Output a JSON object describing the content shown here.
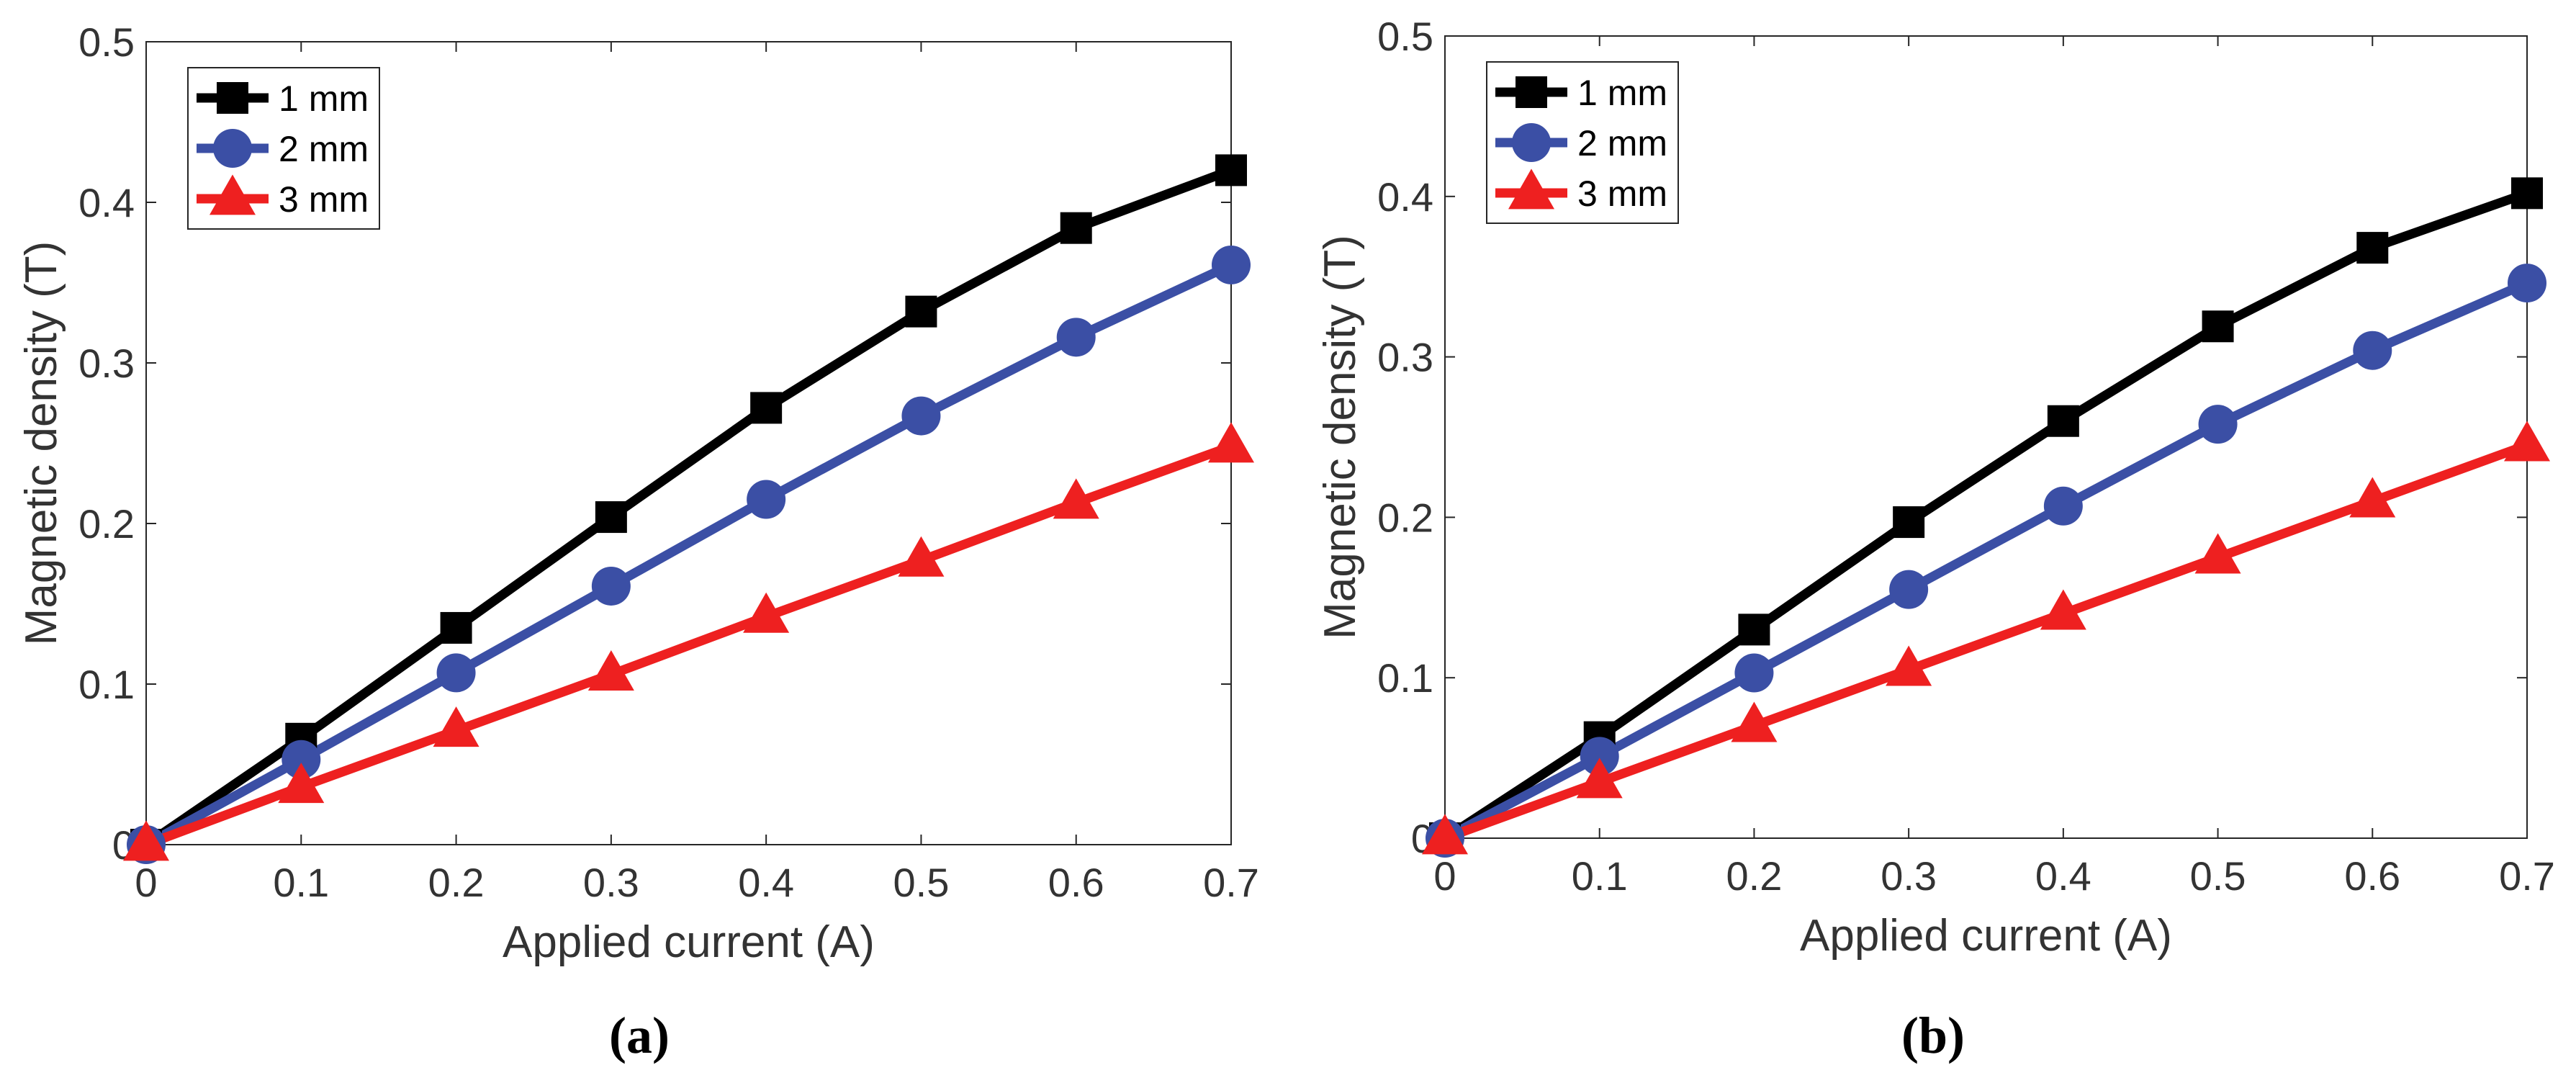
{
  "chart_data": [
    {
      "type": "line",
      "panel_label": "(a)",
      "xlabel": "Applied current (A)",
      "ylabel": "Magnetic density (T)",
      "xlim": [
        0,
        0.7
      ],
      "ylim": [
        0,
        0.5
      ],
      "xticks": [
        0,
        0.1,
        0.2,
        0.3,
        0.4,
        0.5,
        0.6,
        0.7
      ],
      "yticks": [
        0,
        0.1,
        0.2,
        0.3,
        0.4,
        0.5
      ],
      "xtick_labels": [
        "0",
        "0.1",
        "0.2",
        "0.3",
        "0.4",
        "0.5",
        "0.6",
        "0.7"
      ],
      "ytick_labels": [
        "0",
        "0.1",
        "0.2",
        "0.3",
        "0.4",
        "0.5"
      ],
      "legend_position": "top-left",
      "x": [
        0,
        0.1,
        0.2,
        0.3,
        0.4,
        0.5,
        0.6,
        0.7
      ],
      "series": [
        {
          "name": "1 mm",
          "color": "#000000",
          "marker": "square",
          "values": [
            0,
            0.066,
            0.135,
            0.204,
            0.272,
            0.332,
            0.384,
            0.42
          ]
        },
        {
          "name": "2 mm",
          "color": "#3b4fa5",
          "marker": "circle",
          "values": [
            0,
            0.053,
            0.107,
            0.161,
            0.215,
            0.267,
            0.316,
            0.361
          ]
        },
        {
          "name": "3 mm",
          "color": "#ee2020",
          "marker": "triangle",
          "values": [
            0,
            0.036,
            0.071,
            0.106,
            0.142,
            0.177,
            0.213,
            0.248
          ]
        }
      ]
    },
    {
      "type": "line",
      "panel_label": "(b)",
      "xlabel": "Applied current (A)",
      "ylabel": "Magnetic density (T)",
      "xlim": [
        0,
        0.7
      ],
      "ylim": [
        0,
        0.5
      ],
      "xticks": [
        0,
        0.1,
        0.2,
        0.3,
        0.4,
        0.5,
        0.6,
        0.7
      ],
      "yticks": [
        0,
        0.1,
        0.2,
        0.3,
        0.4,
        0.5
      ],
      "xtick_labels": [
        "0",
        "0.1",
        "0.2",
        "0.3",
        "0.4",
        "0.5",
        "0.6",
        "0.7"
      ],
      "ytick_labels": [
        "0",
        "0.1",
        "0.2",
        "0.3",
        "0.4",
        "0.5"
      ],
      "legend_position": "top-left",
      "x": [
        0,
        0.1,
        0.2,
        0.3,
        0.4,
        0.5,
        0.6,
        0.7
      ],
      "series": [
        {
          "name": "1 mm",
          "color": "#000000",
          "marker": "square",
          "values": [
            0,
            0.063,
            0.13,
            0.197,
            0.26,
            0.319,
            0.368,
            0.402
          ]
        },
        {
          "name": "2 mm",
          "color": "#3b4fa5",
          "marker": "circle",
          "values": [
            0,
            0.051,
            0.103,
            0.155,
            0.207,
            0.258,
            0.304,
            0.346
          ]
        },
        {
          "name": "3 mm",
          "color": "#ee2020",
          "marker": "triangle",
          "values": [
            0,
            0.035,
            0.07,
            0.105,
            0.14,
            0.175,
            0.21,
            0.245
          ]
        }
      ]
    }
  ]
}
